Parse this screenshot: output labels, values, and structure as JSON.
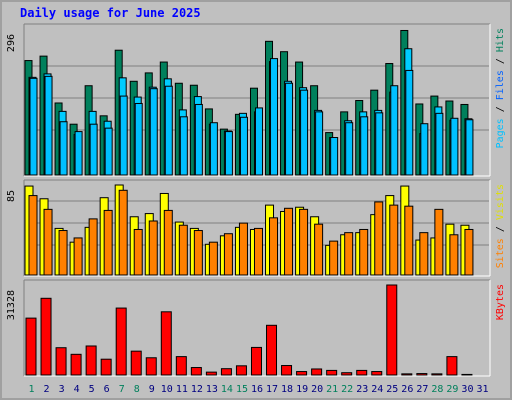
{
  "title": "Daily usage for June 2025",
  "colors": {
    "hits": "#00805c",
    "files": "#00ccff",
    "pages": "#00c0ff",
    "pages_dark": "#0000ff",
    "visits": "#ffff00",
    "sites": "#ff8000",
    "kbytes": "#ff0000",
    "weekend_label": "#00805c",
    "weekday_label": "#000080"
  },
  "chart_data": [
    {
      "type": "bar",
      "panel": "hits-files-pages",
      "ymax_label": "296",
      "ylim": [
        0,
        296
      ],
      "right_labels": [
        {
          "text": "Pages",
          "color": "#00c0ff"
        },
        {
          "text": " / ",
          "color": "#000000"
        },
        {
          "text": "Files",
          "color": "#0060ff"
        },
        {
          "text": " / ",
          "color": "#000000"
        },
        {
          "text": "Hits",
          "color": "#00805c"
        }
      ],
      "categories": [
        "1",
        "2",
        "3",
        "4",
        "5",
        "6",
        "7",
        "8",
        "9",
        "10",
        "11",
        "12",
        "13",
        "14",
        "15",
        "16",
        "17",
        "18",
        "19",
        "20",
        "21",
        "22",
        "23",
        "24",
        "25",
        "26",
        "27",
        "28",
        "29",
        "30"
      ],
      "series": [
        {
          "name": "Hits",
          "values": [
            232,
            241,
            146,
            103,
            181,
            120,
            253,
            190,
            207,
            229,
            186,
            182,
            134,
            93,
            123,
            176,
            271,
            250,
            229,
            181,
            86,
            128,
            151,
            172,
            226,
            293,
            144,
            160,
            150,
            143
          ]
        },
        {
          "name": "Files",
          "values": [
            198,
            205,
            129,
            82,
            129,
            109,
            197,
            158,
            178,
            195,
            132,
            159,
            103,
            89,
            125,
            128,
            230,
            190,
            177,
            131,
            76,
            110,
            128,
            131,
            168,
            256,
            84,
            138,
            111,
            114
          ]
        },
        {
          "name": "Pages",
          "values": [
            196,
            200,
            108,
            88,
            103,
            95,
            160,
            145,
            175,
            180,
            118,
            143,
            106,
            88,
            117,
            136,
            236,
            186,
            172,
            128,
            76,
            106,
            118,
            126,
            181,
            212,
            104,
            125,
            115,
            112
          ]
        }
      ]
    },
    {
      "type": "bar",
      "panel": "visits-sites",
      "ymax_label": "85",
      "ylim": [
        0,
        85
      ],
      "right_labels": [
        {
          "text": "Sites",
          "color": "#ff8000"
        },
        {
          "text": " / ",
          "color": "#000000"
        },
        {
          "text": "Visits",
          "color": "#e0e000"
        }
      ],
      "categories": [
        "1",
        "2",
        "3",
        "4",
        "5",
        "6",
        "7",
        "8",
        "9",
        "10",
        "11",
        "12",
        "13",
        "14",
        "15",
        "16",
        "17",
        "18",
        "19",
        "20",
        "21",
        "22",
        "23",
        "24",
        "25",
        "26",
        "27",
        "28",
        "29",
        "30"
      ],
      "series": [
        {
          "name": "Visits",
          "values": [
            84,
            72,
            44,
            31,
            45,
            73,
            85,
            55,
            58,
            77,
            50,
            44,
            29,
            37,
            45,
            43,
            66,
            60,
            64,
            55,
            28,
            38,
            40,
            57,
            75,
            84,
            33,
            35,
            48,
            47
          ]
        },
        {
          "name": "Sites",
          "values": [
            75,
            62,
            42,
            35,
            53,
            61,
            80,
            43,
            51,
            61,
            47,
            42,
            31,
            39,
            49,
            44,
            54,
            63,
            62,
            48,
            32,
            40,
            43,
            69,
            66,
            65,
            40,
            62,
            38,
            43
          ]
        }
      ]
    },
    {
      "type": "bar",
      "panel": "kbytes",
      "ymax_label": "31328",
      "ylim": [
        0,
        31328
      ],
      "right_labels": [
        {
          "text": "KBytes",
          "color": "#ff0000"
        }
      ],
      "categories": [
        "1",
        "2",
        "3",
        "4",
        "5",
        "6",
        "7",
        "8",
        "9",
        "10",
        "11",
        "12",
        "13",
        "14",
        "15",
        "16",
        "17",
        "18",
        "19",
        "20",
        "21",
        "22",
        "23",
        "24",
        "25",
        "26",
        "27",
        "28",
        "29",
        "30"
      ],
      "series": [
        {
          "name": "KBytes",
          "values": [
            19800,
            26700,
            9500,
            7200,
            10100,
            5500,
            23300,
            8300,
            6000,
            22000,
            6400,
            2600,
            1000,
            2200,
            3200,
            9600,
            17300,
            3300,
            1200,
            2100,
            1600,
            800,
            1600,
            1200,
            31328,
            400,
            500,
            400,
            6400,
            200
          ]
        }
      ]
    }
  ],
  "x_labels": [
    {
      "text": "1",
      "weekend": true
    },
    {
      "text": "2",
      "weekend": false
    },
    {
      "text": "3",
      "weekend": false
    },
    {
      "text": "4",
      "weekend": false
    },
    {
      "text": "5",
      "weekend": false
    },
    {
      "text": "6",
      "weekend": false
    },
    {
      "text": "7",
      "weekend": true
    },
    {
      "text": "8",
      "weekend": true
    },
    {
      "text": "9",
      "weekend": false
    },
    {
      "text": "10",
      "weekend": false
    },
    {
      "text": "11",
      "weekend": false
    },
    {
      "text": "12",
      "weekend": false
    },
    {
      "text": "13",
      "weekend": false
    },
    {
      "text": "14",
      "weekend": true
    },
    {
      "text": "15",
      "weekend": true
    },
    {
      "text": "16",
      "weekend": false
    },
    {
      "text": "17",
      "weekend": false
    },
    {
      "text": "18",
      "weekend": false
    },
    {
      "text": "19",
      "weekend": false
    },
    {
      "text": "20",
      "weekend": false
    },
    {
      "text": "21",
      "weekend": true
    },
    {
      "text": "22",
      "weekend": true
    },
    {
      "text": "23",
      "weekend": false
    },
    {
      "text": "24",
      "weekend": false
    },
    {
      "text": "25",
      "weekend": false
    },
    {
      "text": "26",
      "weekend": false
    },
    {
      "text": "27",
      "weekend": false
    },
    {
      "text": "28",
      "weekend": true
    },
    {
      "text": "29",
      "weekend": true
    },
    {
      "text": "30",
      "weekend": false
    },
    {
      "text": "31",
      "weekend": false
    }
  ]
}
